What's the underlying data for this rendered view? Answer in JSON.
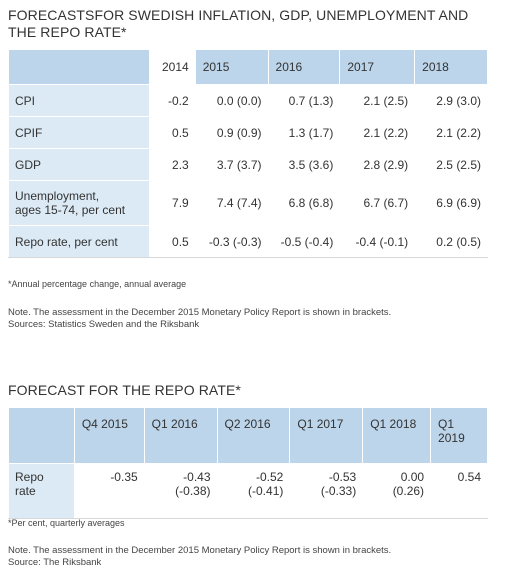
{
  "table1": {
    "title": "FORECASTSFOR SWEDISH INFLATION, GDP, UNEMPLOYMENT AND THE REPO RATE*",
    "columns": [
      "2014",
      "2015",
      "2016",
      "2017",
      "2018"
    ],
    "rows": [
      {
        "label": "CPI",
        "values": [
          "-0.2",
          "0.0 (0.0)",
          "0.7 (1.3)",
          "2.1 (2.5)",
          "2.9 (3.0)"
        ]
      },
      {
        "label": "CPIF",
        "values": [
          "0.5",
          "0.9 (0.9)",
          "1.3 (1.7)",
          "2.1 (2.2)",
          "2.1 (2.2)"
        ]
      },
      {
        "label": "GDP",
        "values": [
          "2.3",
          "3.7 (3.7)",
          "3.5 (3.6)",
          "2.8 (2.9)",
          "2.5 (2.5)"
        ]
      },
      {
        "label": "Unemployment,\nages 15-74, per cent",
        "values": [
          "7.9",
          "7.4 (7.4)",
          "6.8 (6.8)",
          "6.7 (6.7)",
          "6.9 (6.9)"
        ]
      },
      {
        "label": "Repo rate, per cent",
        "values": [
          "0.5",
          "-0.3 (-0.3)",
          "-0.5 (-0.4)",
          "-0.4 (-0.1)",
          "0.2 (0.5)"
        ]
      }
    ],
    "footnote": "*Annual percentage change, annual average",
    "note": "Note. The assessment in the December 2015 Monetary Policy Report is shown in brackets.",
    "sources": "Sources: Statistics Sweden and the Riksbank"
  },
  "table2": {
    "title": "FORECAST FOR THE REPO RATE*",
    "columns": [
      "Q4 2015",
      "Q1 2016",
      "Q2 2016",
      "Q1 2017",
      "Q1 2018",
      "Q1\n2019"
    ],
    "row_label": "Repo\nrate",
    "values": [
      "-0.35",
      "-0.43\n(-0.38)",
      "-0.52\n(-0.41)",
      "-0.53\n(-0.33)",
      "0.00\n(0.26)",
      "0.54"
    ],
    "footnote": "*Per cent, quarterly averages",
    "note": "Note. The assessment in the December 2015 Monetary Policy Report is shown in brackets.",
    "sources": "Source: The Riksbank"
  }
}
